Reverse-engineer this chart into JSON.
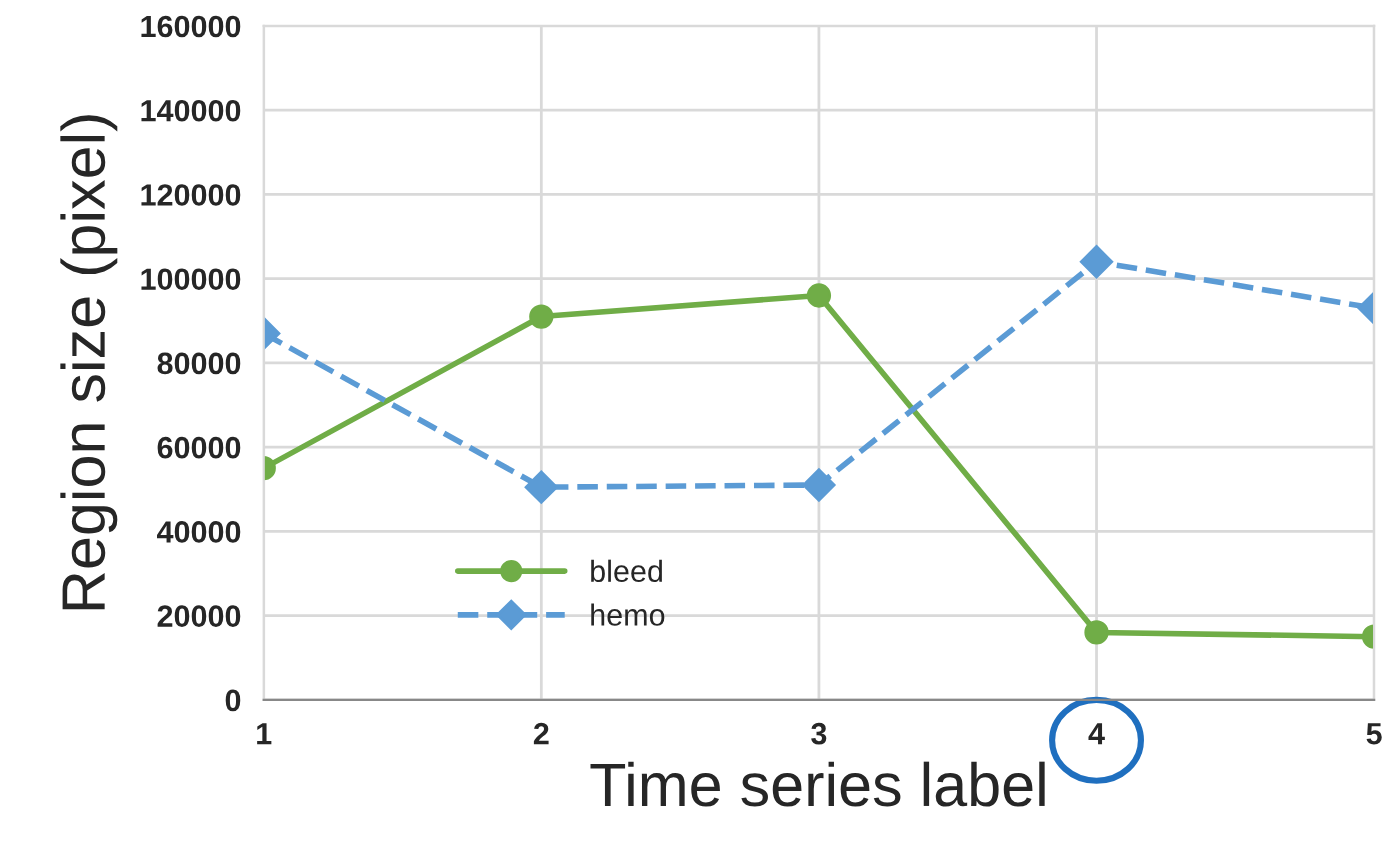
{
  "chart_data": {
    "type": "line",
    "xlabel": "Time series label",
    "ylabel": "Region size (pixel)",
    "x": [
      1,
      2,
      3,
      4,
      5
    ],
    "xlim": [
      1,
      5
    ],
    "xticks": [
      1,
      2,
      3,
      4,
      5
    ],
    "ylim": [
      0,
      160000
    ],
    "yticks": [
      0,
      20000,
      40000,
      60000,
      80000,
      100000,
      120000,
      140000,
      160000
    ],
    "grid": true,
    "legend": "lower left",
    "series": [
      {
        "name": "bleed",
        "color": "#70ad47",
        "marker": "circle",
        "line_style": "solid",
        "values": [
          55000,
          91000,
          96000,
          16000,
          15000
        ]
      },
      {
        "name": "hemo",
        "color": "#5b9bd5",
        "marker": "diamond",
        "line_style": "dashed",
        "values": [
          87000,
          50500,
          51000,
          104000,
          93000
        ]
      }
    ]
  }
}
